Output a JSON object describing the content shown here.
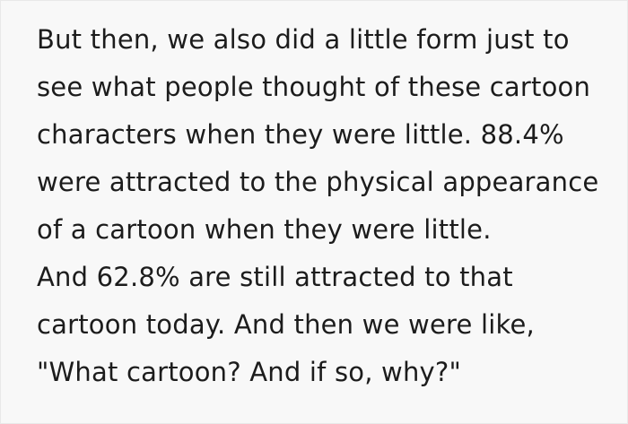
{
  "quote": {
    "lines": [
      "But then, we also did a little form just to",
      "see what people thought of these cartoon",
      "characters when they were little. 88.4%",
      "were attracted to the physical appearance",
      "of a cartoon when they were little.",
      "And 62.8% are still attracted to that",
      "cartoon today. And then we were like,",
      "\"What cartoon? And if so, why?\""
    ],
    "stats": {
      "attracted_when_little_pct": "88.4%",
      "still_attracted_today_pct": "62.8%"
    },
    "colors": {
      "background": "#f8f8f8",
      "text": "#1c1c1c",
      "border": "#e9e9e9"
    }
  }
}
